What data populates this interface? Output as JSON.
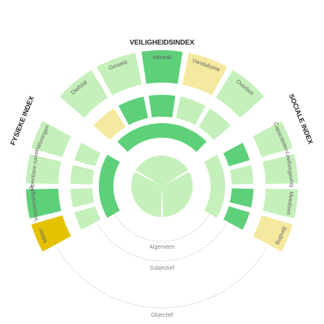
{
  "chart_data": {
    "type": "radial-segment",
    "colors": {
      "dark_green": "#5fd07a",
      "light_green": "#c5f0bb",
      "pale_yellow": "#f5e9a0",
      "dark_yellow": "#e4c200",
      "guide": "#e6e6e6",
      "ring_label": "#888888",
      "title": "#222222"
    },
    "titles": {
      "top": "VEILIGHEIDSINDEX",
      "left": "FYSIEKE INDEX",
      "right": "SOCIALE INDEX"
    },
    "ring_labels": [
      "Algemeen",
      "Subjectief",
      "Objectief"
    ],
    "groups": [
      {
        "name": "veiligheid",
        "categories": [
          {
            "label": "Diefstal",
            "outer": "light_green",
            "middle": "pale_yellow"
          },
          {
            "label": "Geweld",
            "outer": "light_green",
            "middle": "dark_green"
          },
          {
            "label": "Inbraak",
            "outer": "dark_green",
            "middle": "dark_green"
          },
          {
            "label": "Vandalisme",
            "outer": "pale_yellow",
            "middle": "light_green"
          },
          {
            "label": "Overlast",
            "outer": "light_green",
            "middle": "light_green"
          }
        ],
        "inner": "dark_green"
      },
      {
        "name": "sociaal",
        "categories": [
          {
            "label": "Capaciteiten",
            "outer": "light_green",
            "middle": "dark_green"
          },
          {
            "label": "Leefomgeving",
            "outer": "light_green",
            "middle": "light_green"
          },
          {
            "label": "Meedoen",
            "outer": "light_green",
            "middle": "dark_green"
          },
          {
            "label": "Binding",
            "outer": "pale_yellow",
            "middle": "dark_green"
          }
        ],
        "inner": "light_green"
      },
      {
        "name": "fysiek",
        "categories": [
          {
            "label": "Milieu",
            "outer": "dark_yellow",
            "middle": "light_green"
          },
          {
            "label": "Voorzieningen",
            "outer": "dark_green",
            "middle": "light_green"
          },
          {
            "label": "Openbare ruimte",
            "outer": "light_green",
            "middle": "light_green"
          },
          {
            "label": "Woningen",
            "outer": "light_green",
            "middle": "light_green"
          }
        ],
        "inner": "dark_green"
      }
    ],
    "center": [
      "light_green",
      "light_green",
      "light_green"
    ]
  }
}
